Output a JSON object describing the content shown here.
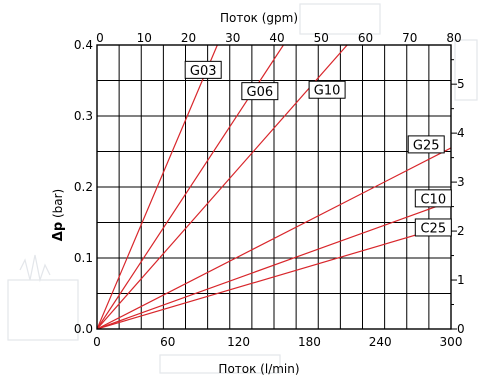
{
  "chart_data": {
    "type": "line",
    "xlabel": "Поток (l/min)",
    "ylabel_symbol": "Δp",
    "ylabel_unit": "(bar)",
    "top_label": "Поток (gpm)",
    "xlim": [
      0,
      300
    ],
    "ylim": [
      0,
      0.4
    ],
    "x_ticks": [
      0,
      60,
      120,
      180,
      240,
      300
    ],
    "y_ticks": [
      0.0,
      0.1,
      0.2,
      0.3,
      0.4
    ],
    "y_tick_labels": [
      "0.0",
      "0.1",
      "0.2",
      "0.3",
      "0.4"
    ],
    "top_ticks": [
      0,
      10,
      20,
      30,
      40,
      50,
      60,
      70,
      80
    ],
    "top_lim": [
      0,
      80
    ],
    "right_ticks": [
      0,
      1,
      2,
      3,
      4,
      5
    ],
    "right_lim": [
      0,
      5.8
    ],
    "grid": true,
    "series": [
      {
        "name": "G03",
        "x": [
          0,
          102
        ],
        "y": [
          0,
          0.4
        ]
      },
      {
        "name": "G06",
        "x": [
          0,
          158
        ],
        "y": [
          0,
          0.4
        ]
      },
      {
        "name": "G10",
        "x": [
          0,
          212
        ],
        "y": [
          0,
          0.4
        ]
      },
      {
        "name": "G25",
        "x": [
          0,
          300
        ],
        "y": [
          0,
          0.255
        ]
      },
      {
        "name": "C10",
        "x": [
          0,
          300
        ],
        "y": [
          0,
          0.18
        ]
      },
      {
        "name": "C25",
        "x": [
          0,
          300
        ],
        "y": [
          0,
          0.147
        ]
      }
    ],
    "line_color": "#d8262b"
  }
}
